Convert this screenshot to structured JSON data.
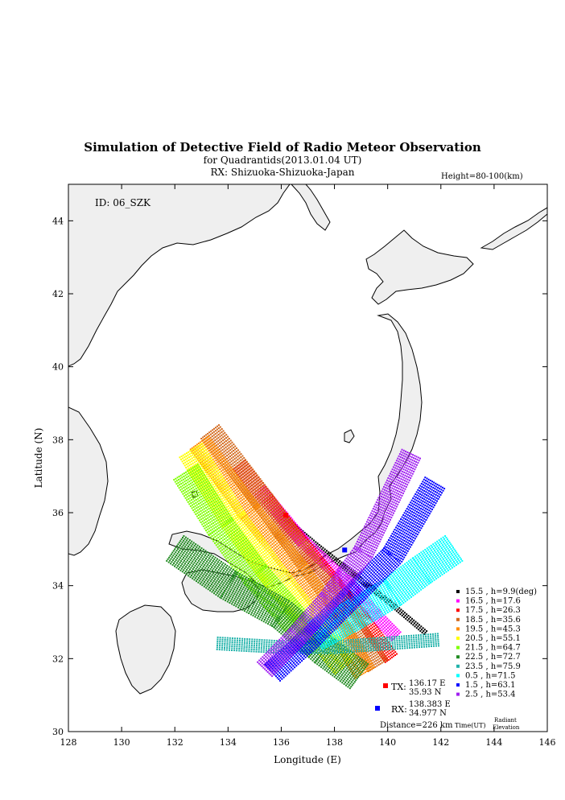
{
  "header": {
    "title": "Simulation of Detective Field of Radio Meteor Observation",
    "subtitle": "for Quadrantids(2013.01.04 UT)",
    "rx_line": "RX: Shizuoka-Shizuoka-Japan",
    "height_note": "Height=80-100(km)",
    "id_label": "ID: 06_SZK"
  },
  "stations": {
    "tx_label": "TX:",
    "tx_lon_text": "136.17 E",
    "tx_lat_text": "35.93 N",
    "rx_label": "RX:",
    "rx_lon_text": "138.383 E",
    "rx_lat_text": "34.977 N",
    "distance_text": "Distance=226 km",
    "tx": {
      "lon": 136.17,
      "lat": 35.93,
      "color": "#ff0000"
    },
    "rx": {
      "lon": 138.383,
      "lat": 34.977,
      "color": "#0000ff"
    }
  },
  "legend": {
    "time_label": "Time(UT)",
    "radiant_label_1": "Radiant",
    "radiant_label_2": "Elevation",
    "entries": [
      {
        "label": "15.5 ,  h=9.9(deg)",
        "color": "#000000"
      },
      {
        "label": "16.5 ,  h=17.6",
        "color": "#ff00ff"
      },
      {
        "label": "17.5 ,  h=26.3",
        "color": "#ff0000"
      },
      {
        "label": "18.5 ,  h=35.6",
        "color": "#d2691e"
      },
      {
        "label": "19.5 ,  h=45.3",
        "color": "#ff8c00"
      },
      {
        "label": "20.5 ,  h=55.1",
        "color": "#ffff00"
      },
      {
        "label": "21.5 ,  h=64.7",
        "color": "#7fff00"
      },
      {
        "label": "22.5 ,  h=72.7",
        "color": "#228b22"
      },
      {
        "label": "23.5 ,  h=75.9",
        "color": "#20b2aa"
      },
      {
        "label": "0.5  ,  h=71.5",
        "color": "#00ffff"
      },
      {
        "label": "1.5  ,  h=63.1",
        "color": "#0000ff"
      },
      {
        "label": "2.5  ,  h=53.4",
        "color": "#a020f0"
      }
    ]
  },
  "chart_data": {
    "type": "scatter",
    "title": "Simulation of Detective Field of Radio Meteor Observation",
    "subtitle": "for Quadrantids(2013.01.04 UT)",
    "xlabel": "Longitude (E)",
    "ylabel": "Latitude (N)",
    "xlim": [
      128,
      146
    ],
    "ylim": [
      30,
      45
    ],
    "xticks": [
      128,
      130,
      132,
      134,
      136,
      138,
      140,
      142,
      144,
      146
    ],
    "yticks": [
      30,
      32,
      34,
      36,
      38,
      40,
      42,
      44
    ],
    "grid": false,
    "legend_position": "bottom-right",
    "series": [
      {
        "name": "15.5 ,  h=9.9(deg)",
        "color": "#000000",
        "points": [
          [
            136.0,
            35.9
          ],
          [
            137.3,
            35.1
          ],
          [
            138.7,
            34.3
          ],
          [
            140.1,
            33.5
          ],
          [
            141.4,
            32.7
          ]
        ],
        "width_deg": 0.1
      },
      {
        "name": "16.5 ,  h=17.6",
        "color": "#ff00ff",
        "points": [
          [
            135.2,
            36.6
          ],
          [
            136.8,
            35.2
          ],
          [
            138.4,
            34.1
          ],
          [
            139.5,
            33.2
          ],
          [
            140.3,
            32.6
          ]
        ],
        "width_deg": 0.25
      },
      {
        "name": "17.5 ,  h=26.3",
        "color": "#ff0000",
        "points": [
          [
            134.4,
            37.3
          ],
          [
            136.0,
            35.8
          ],
          [
            137.8,
            34.2
          ],
          [
            139.1,
            33.0
          ],
          [
            140.1,
            32.0
          ]
        ],
        "width_deg": 0.3
      },
      {
        "name": "18.5 ,  h=35.6",
        "color": "#d2691e",
        "points": [
          [
            133.3,
            38.2
          ],
          [
            135.3,
            36.3
          ],
          [
            137.0,
            34.6
          ],
          [
            138.3,
            33.3
          ],
          [
            139.6,
            31.8
          ]
        ],
        "width_deg": 0.45
      },
      {
        "name": "19.5 ,  h=45.3",
        "color": "#ff8c00",
        "points": [
          [
            132.9,
            37.9
          ],
          [
            134.8,
            36.0
          ],
          [
            136.6,
            34.4
          ],
          [
            138.0,
            33.0
          ],
          [
            139.1,
            31.6
          ]
        ],
        "width_deg": 0.45
      },
      {
        "name": "20.5 ,  h=55.1",
        "color": "#ffff00",
        "points": [
          [
            132.6,
            37.7
          ],
          [
            134.2,
            35.8
          ],
          [
            135.8,
            34.2
          ],
          [
            137.2,
            32.9
          ],
          [
            138.4,
            31.8
          ]
        ],
        "width_deg": 0.5
      },
      {
        "name": "21.5 ,  h=64.7",
        "color": "#7fff00",
        "points": [
          [
            132.4,
            37.1
          ],
          [
            133.7,
            35.6
          ],
          [
            135.0,
            34.3
          ],
          [
            136.3,
            33.2
          ],
          [
            137.4,
            32.3
          ]
        ],
        "width_deg": 0.55
      },
      {
        "name": "22.5 ,  h=72.7",
        "color": "#228b22",
        "points": [
          [
            132.0,
            35.0
          ],
          [
            134.0,
            34.0
          ],
          [
            136.0,
            33.2
          ],
          [
            137.6,
            32.2
          ],
          [
            138.9,
            31.5
          ]
        ],
        "width_deg": 0.6
      },
      {
        "name": "23.5 ,  h=75.9",
        "color": "#20b2aa",
        "points": [
          [
            133.6,
            32.4
          ],
          [
            136.0,
            32.3
          ],
          [
            138.0,
            32.3
          ],
          [
            140.0,
            32.4
          ],
          [
            141.9,
            32.5
          ]
        ],
        "width_deg": 0.25
      },
      {
        "name": "0.5  ,  h=71.5",
        "color": "#00ffff",
        "points": [
          [
            137.3,
            32.6
          ],
          [
            138.8,
            33.2
          ],
          [
            140.2,
            33.8
          ],
          [
            141.3,
            34.4
          ],
          [
            142.5,
            35.0
          ]
        ],
        "width_deg": 0.6
      },
      {
        "name": "1.5  ,  h=63.1",
        "color": "#0000ff",
        "points": [
          [
            135.7,
            31.6
          ],
          [
            137.2,
            32.6
          ],
          [
            138.7,
            33.7
          ],
          [
            140.2,
            34.8
          ],
          [
            141.8,
            36.8
          ]
        ],
        "width_deg": 0.45
      },
      {
        "name": "2.5  ,  h=53.4",
        "color": "#a020f0",
        "points": [
          [
            135.4,
            31.7
          ],
          [
            136.6,
            32.6
          ],
          [
            137.8,
            33.6
          ],
          [
            139.1,
            34.9
          ],
          [
            140.9,
            37.6
          ]
        ],
        "width_deg": 0.4
      }
    ]
  }
}
